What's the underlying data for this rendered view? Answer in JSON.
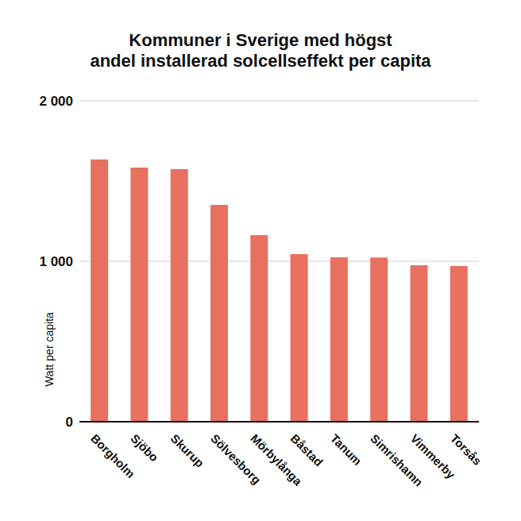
{
  "chart_data": {
    "type": "bar",
    "title": "Kommuner i Sverige med högst\nandel installerad solcellseffekt per capita",
    "y_label": "Watt per capita",
    "categories": [
      "Borgholm",
      "Sjöbo",
      "Skurup",
      "Sölvesborg",
      "Mörbylånga",
      "Båstad",
      "Tanum",
      "Simrishamn",
      "Vimmerby",
      "Torsås"
    ],
    "values": [
      1635,
      1584,
      1574,
      1351,
      1163,
      1045,
      1025,
      1023,
      975,
      970
    ],
    "color": "#e8705f",
    "ylim": [
      0,
      2000
    ],
    "yticks": [
      0,
      {
        "value": 1000,
        "label": "1 000"
      },
      {
        "value": 2000,
        "label": "2 000"
      }
    ],
    "grid": true
  }
}
